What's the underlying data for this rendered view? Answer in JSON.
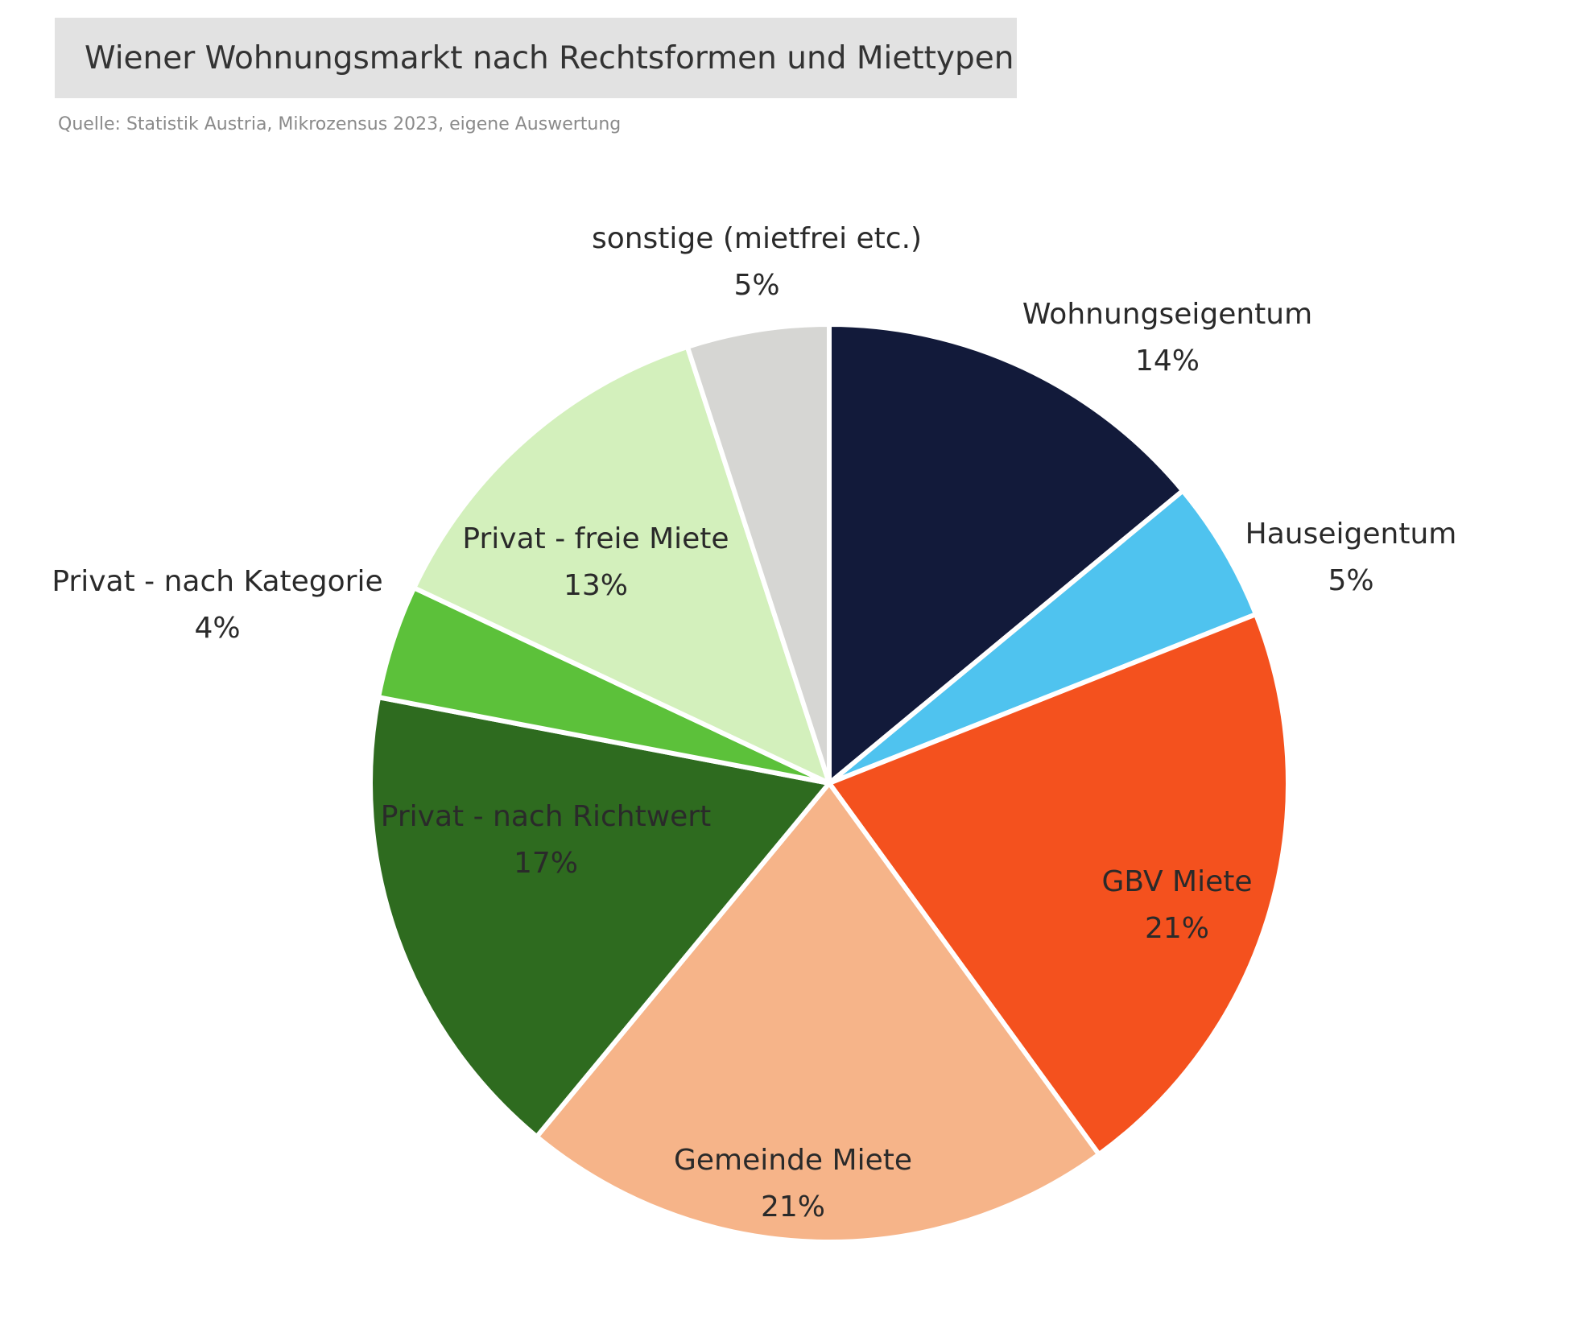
{
  "header": {
    "title": "Wiener Wohnungsmarkt nach Rechtsformen und Miettypen",
    "source": "Quelle: Statistik Austria, Mikrozensus 2023, eigene Auswertung"
  },
  "chart_data": {
    "type": "pie",
    "title": "Wiener Wohnungsmarkt nach Rechtsformen und Miettypen",
    "subtitle": "Quelle: Statistik Austria, Mikrozensus 2023, eigene Auswertung",
    "start": "12 o'clock",
    "direction": "clockwise",
    "slices": [
      {
        "label": "Wohnungseigentum",
        "value": 14,
        "value_label": "14%",
        "color": "#121a3a"
      },
      {
        "label": "Hauseigentum",
        "value": 5,
        "value_label": "5%",
        "color": "#4fc3ef"
      },
      {
        "label": "GBV Miete",
        "value": 21,
        "value_label": "21%",
        "color": "#f4511e"
      },
      {
        "label": "Gemeinde Miete",
        "value": 21,
        "value_label": "21%",
        "color": "#f6b489"
      },
      {
        "label": "Privat - nach Richtwert",
        "value": 17,
        "value_label": "17%",
        "color": "#2e6b1f"
      },
      {
        "label": "Privat - nach Kategorie",
        "value": 4,
        "value_label": "4%",
        "color": "#5cc13a"
      },
      {
        "label": "Privat - freie Miete",
        "value": 13,
        "value_label": "13%",
        "color": "#d3f0bc"
      },
      {
        "label": "sonstige (mietfrei etc.)",
        "value": 5,
        "value_label": "5%",
        "color": "#d6d6d3"
      }
    ]
  }
}
